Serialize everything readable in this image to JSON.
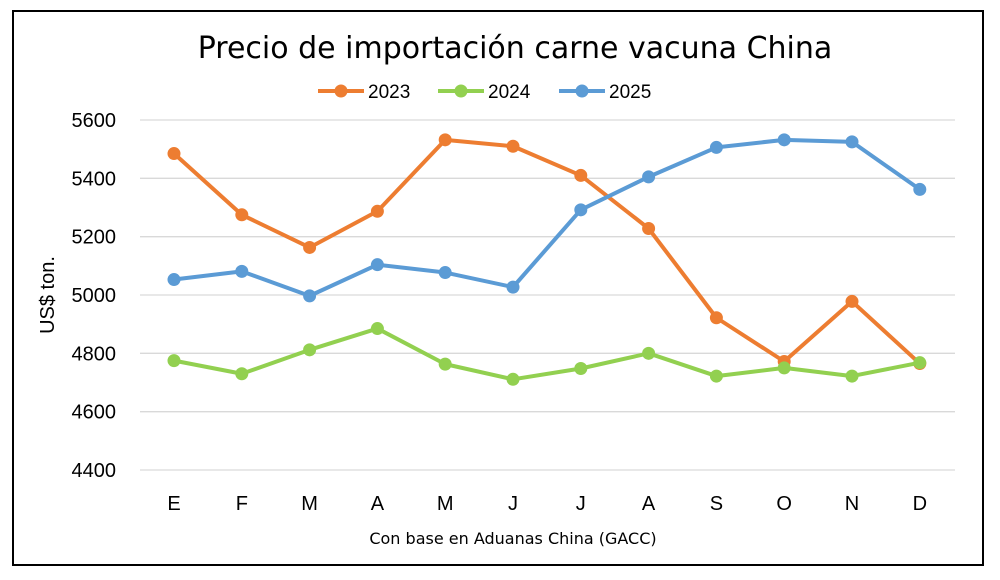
{
  "chart_data": {
    "type": "line",
    "title": "Precio de importación carne vacuna China",
    "xlabel": "Con base en Aduanas China (GACC)",
    "ylabel": "US$ ton.",
    "categories": [
      "E",
      "F",
      "M",
      "A",
      "M",
      "J",
      "J",
      "A",
      "S",
      "O",
      "N",
      "D"
    ],
    "ylim": [
      4400,
      5600
    ],
    "yticks": [
      4400,
      4600,
      4800,
      5000,
      5200,
      5400,
      5600
    ],
    "grid": true,
    "legend_position": "top-center",
    "series": [
      {
        "name": "2023",
        "color": "#ED7D31",
        "values": [
          5485,
          5275,
          5163,
          5287,
          5532,
          5510,
          5410,
          5228,
          4922,
          4772,
          4978,
          4765
        ]
      },
      {
        "name": "2024",
        "color": "#92D050",
        "values": [
          4775,
          4730,
          4812,
          4885,
          4763,
          4711,
          4748,
          4800,
          4722,
          4750,
          4722,
          4768
        ]
      },
      {
        "name": "2025",
        "color": "#5B9BD5",
        "values": [
          5053,
          5081,
          4997,
          5104,
          5077,
          5027,
          5292,
          5405,
          5506,
          5532,
          5525,
          5362
        ]
      }
    ]
  }
}
